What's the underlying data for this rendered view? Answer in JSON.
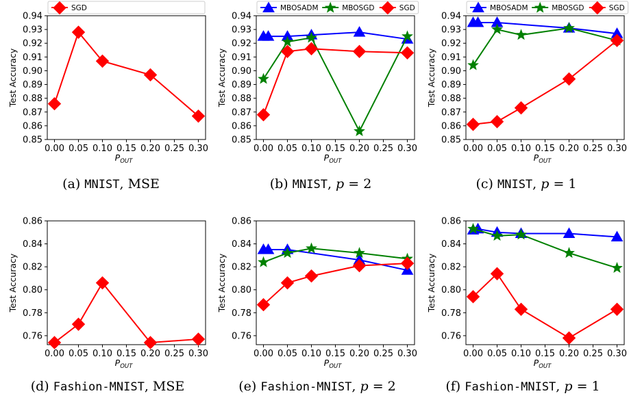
{
  "chart_data": [
    {
      "type": "line",
      "x": [
        0.0,
        0.05,
        0.1,
        0.2,
        0.3
      ],
      "xticks": [
        "0.00",
        "0.05",
        "0.10",
        "0.15",
        "0.20",
        "0.25",
        "0.30"
      ],
      "xlim": [
        -0.015,
        0.315
      ],
      "ylim": [
        0.85,
        0.94
      ],
      "yticks": [
        "0.85",
        "0.86",
        "0.87",
        "0.88",
        "0.89",
        "0.90",
        "0.91",
        "0.92",
        "0.93",
        "0.94"
      ],
      "ylabel": "Test Accuracy",
      "xlabel": "P",
      "xlabel_sub": "OUT",
      "legend": "top",
      "series": [
        {
          "name": "SGD",
          "color": "#ff0000",
          "marker": "diamond",
          "x": [
            0.0,
            0.05,
            0.1,
            0.2,
            0.3
          ],
          "values": [
            0.876,
            0.928,
            0.907,
            0.897,
            0.867
          ]
        }
      ],
      "caption": {
        "label": "(a)",
        "dataset": "MNIST",
        "rest": ", MSE",
        "param": "",
        "value": ""
      }
    },
    {
      "type": "line",
      "xticks": [
        "0.00",
        "0.05",
        "0.10",
        "0.15",
        "0.20",
        "0.25",
        "0.30"
      ],
      "xlim": [
        -0.015,
        0.315
      ],
      "ylim": [
        0.85,
        0.94
      ],
      "yticks": [
        "0.85",
        "0.86",
        "0.87",
        "0.88",
        "0.89",
        "0.90",
        "0.91",
        "0.92",
        "0.93",
        "0.94"
      ],
      "ylabel": "Test Accuracy",
      "xlabel": "P",
      "xlabel_sub": "OUT",
      "legend": "top",
      "series": [
        {
          "name": "MBOSADM",
          "color": "#0000ff",
          "marker": "triangle",
          "x": [
            0.0,
            0.01,
            0.05,
            0.1,
            0.2,
            0.3
          ],
          "values": [
            0.925,
            0.925,
            0.925,
            0.926,
            0.928,
            0.923
          ]
        },
        {
          "name": "MBOSGD",
          "color": "#008000",
          "marker": "star",
          "x": [
            0.0,
            0.05,
            0.1,
            0.2,
            0.3
          ],
          "values": [
            0.894,
            0.921,
            0.924,
            0.856,
            0.925
          ]
        },
        {
          "name": "SGD",
          "color": "#ff0000",
          "marker": "diamond",
          "x": [
            0.0,
            0.05,
            0.1,
            0.2,
            0.3
          ],
          "values": [
            0.868,
            0.914,
            0.916,
            0.914,
            0.913
          ]
        }
      ],
      "caption": {
        "label": "(b)",
        "dataset": "MNIST",
        "rest": ", ",
        "param": "p",
        "value": " = 2"
      }
    },
    {
      "type": "line",
      "xticks": [
        "0.00",
        "0.05",
        "0.10",
        "0.15",
        "0.20",
        "0.25",
        "0.30"
      ],
      "xlim": [
        -0.015,
        0.315
      ],
      "ylim": [
        0.85,
        0.94
      ],
      "yticks": [
        "0.85",
        "0.86",
        "0.87",
        "0.88",
        "0.89",
        "0.90",
        "0.91",
        "0.92",
        "0.93",
        "0.94"
      ],
      "ylabel": "Test Accuracy",
      "xlabel": "P",
      "xlabel_sub": "OUT",
      "legend": "top",
      "series": [
        {
          "name": "MBOSADM",
          "color": "#0000ff",
          "marker": "triangle",
          "x": [
            0.0,
            0.01,
            0.05,
            0.2,
            0.3
          ],
          "values": [
            0.935,
            0.935,
            0.935,
            0.931,
            0.927
          ]
        },
        {
          "name": "MBOSGD",
          "color": "#008000",
          "marker": "star",
          "x": [
            0.0,
            0.05,
            0.1,
            0.2,
            0.3
          ],
          "values": [
            0.904,
            0.93,
            0.926,
            0.931,
            0.922
          ]
        },
        {
          "name": "SGD",
          "color": "#ff0000",
          "marker": "diamond",
          "x": [
            0.0,
            0.05,
            0.1,
            0.2,
            0.3
          ],
          "values": [
            0.861,
            0.863,
            0.873,
            0.894,
            0.922
          ]
        }
      ],
      "caption": {
        "label": "(c)",
        "dataset": "MNIST",
        "rest": ", ",
        "param": "p",
        "value": " = 1"
      }
    },
    {
      "type": "line",
      "xticks": [
        "0.00",
        "0.05",
        "0.10",
        "0.15",
        "0.20",
        "0.25",
        "0.30"
      ],
      "xlim": [
        -0.015,
        0.315
      ],
      "ylim": [
        0.7522,
        0.86
      ],
      "yticks": [
        "0.76",
        "0.78",
        "0.80",
        "0.82",
        "0.84",
        "0.86"
      ],
      "ylabel": "Test Accuracy",
      "xlabel": "P",
      "xlabel_sub": "OUT",
      "legend": "none",
      "series": [
        {
          "name": "SGD",
          "color": "#ff0000",
          "marker": "diamond",
          "x": [
            0.0,
            0.05,
            0.1,
            0.2,
            0.3
          ],
          "values": [
            0.754,
            0.77,
            0.806,
            0.754,
            0.757
          ]
        }
      ],
      "caption": {
        "label": "(d)",
        "dataset": "Fashion-MNIST",
        "rest": ", MSE",
        "param": "",
        "value": ""
      }
    },
    {
      "type": "line",
      "xticks": [
        "0.00",
        "0.05",
        "0.10",
        "0.15",
        "0.20",
        "0.25",
        "0.30"
      ],
      "xlim": [
        -0.015,
        0.315
      ],
      "ylim": [
        0.7522,
        0.86
      ],
      "yticks": [
        "0.76",
        "0.78",
        "0.80",
        "0.82",
        "0.84",
        "0.86"
      ],
      "ylabel": "Test Accuracy",
      "xlabel": "P",
      "xlabel_sub": "OUT",
      "legend": "none",
      "series": [
        {
          "name": "MBOSADM",
          "color": "#0000ff",
          "marker": "triangle",
          "x": [
            0.0,
            0.01,
            0.05,
            0.2,
            0.3
          ],
          "values": [
            0.835,
            0.835,
            0.835,
            0.826,
            0.817
          ]
        },
        {
          "name": "MBOSGD",
          "color": "#008000",
          "marker": "star",
          "x": [
            0.0,
            0.05,
            0.1,
            0.2,
            0.3
          ],
          "values": [
            0.824,
            0.832,
            0.836,
            0.832,
            0.827
          ]
        },
        {
          "name": "SGD",
          "color": "#ff0000",
          "marker": "diamond",
          "x": [
            0.0,
            0.05,
            0.1,
            0.2,
            0.3
          ],
          "values": [
            0.787,
            0.806,
            0.812,
            0.821,
            0.823
          ]
        }
      ],
      "caption": {
        "label": "(e)",
        "dataset": "Fashion-MNIST",
        "rest": ", ",
        "param": "p",
        "value": " = 2"
      }
    },
    {
      "type": "line",
      "xticks": [
        "0.00",
        "0.05",
        "0.10",
        "0.15",
        "0.20",
        "0.25",
        "0.30"
      ],
      "xlim": [
        -0.015,
        0.315
      ],
      "ylim": [
        0.7522,
        0.86
      ],
      "yticks": [
        "0.76",
        "0.78",
        "0.80",
        "0.82",
        "0.84",
        "0.86"
      ],
      "ylabel": "Test Accuracy",
      "xlabel": "P",
      "xlabel_sub": "OUT",
      "legend": "none",
      "series": [
        {
          "name": "MBOSADM",
          "color": "#0000ff",
          "marker": "triangle",
          "x": [
            0.0,
            0.01,
            0.05,
            0.1,
            0.2,
            0.3
          ],
          "values": [
            0.852,
            0.853,
            0.85,
            0.849,
            0.849,
            0.846
          ]
        },
        {
          "name": "MBOSGD",
          "color": "#008000",
          "marker": "star",
          "x": [
            0.0,
            0.05,
            0.1,
            0.2,
            0.3
          ],
          "values": [
            0.853,
            0.847,
            0.848,
            0.832,
            0.819
          ]
        },
        {
          "name": "SGD",
          "color": "#ff0000",
          "marker": "diamond",
          "x": [
            0.0,
            0.05,
            0.1,
            0.2,
            0.3
          ],
          "values": [
            0.794,
            0.814,
            0.783,
            0.758,
            0.783
          ]
        }
      ],
      "caption": {
        "label": "(f)",
        "dataset": "Fashion-MNIST",
        "rest": ", ",
        "param": "p",
        "value": " = 1"
      }
    }
  ]
}
